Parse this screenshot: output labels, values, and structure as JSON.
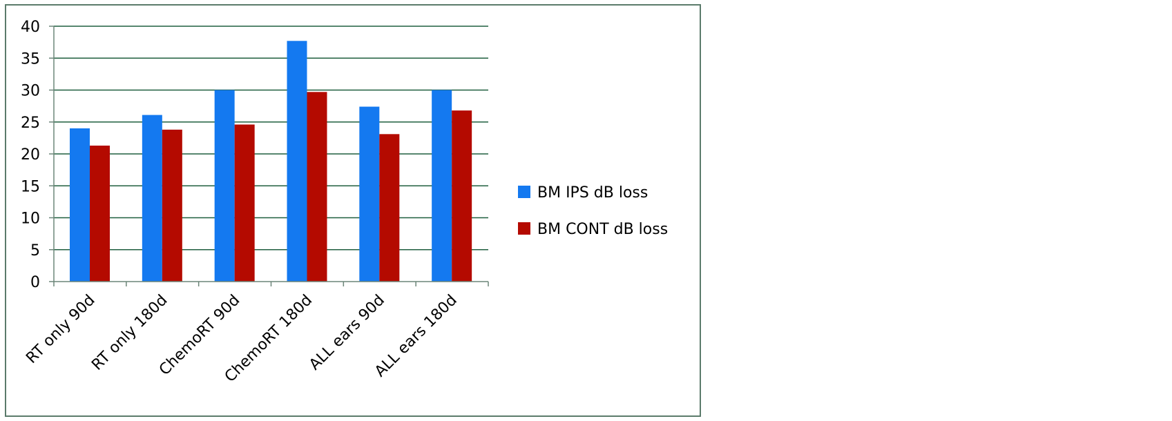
{
  "chart_data": {
    "type": "bar",
    "categories": [
      "RT only 90d",
      "RT only 180d",
      "ChemoRT 90d",
      "ChemoRT 180d",
      "ALL ears 90d",
      "ALL ears 180d"
    ],
    "series": [
      {
        "name": "BM IPS dB loss",
        "color": "#1479F0",
        "values": [
          24.0,
          26.1,
          30.0,
          37.7,
          27.4,
          30.0
        ]
      },
      {
        "name": "BM CONT dB loss",
        "color": "#B40A00",
        "values": [
          21.3,
          23.8,
          24.6,
          29.7,
          23.1,
          26.8
        ]
      }
    ],
    "yticks": [
      "0",
      "5",
      "10",
      "15",
      "20",
      "25",
      "30",
      "35",
      "40"
    ],
    "ylim": [
      0,
      40
    ],
    "grid": true,
    "legend_position": "right"
  },
  "colors": {
    "frame_border": "#5A7A6A",
    "gridline": "#1E5E3E",
    "axis": "#6B8578"
  }
}
